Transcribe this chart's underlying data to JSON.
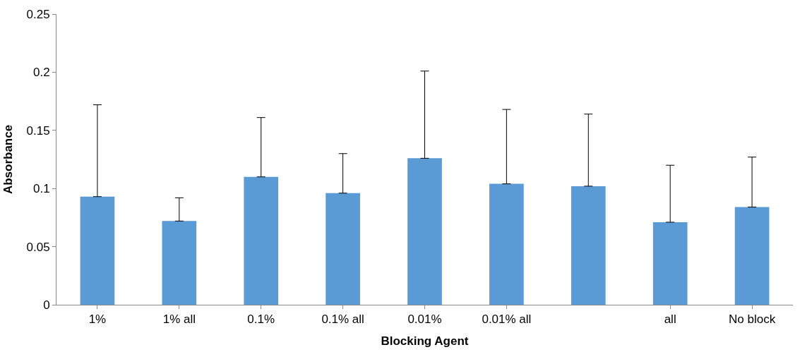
{
  "chart_data": {
    "type": "bar",
    "xlabel": "Blocking Agent",
    "ylabel": "Absorbance",
    "categories": [
      "1%",
      "1% all",
      "0.1%",
      "0.1% all",
      "0.01%",
      "0.01% all",
      null,
      "all",
      "No block"
    ],
    "values": [
      0.093,
      0.072,
      0.11,
      0.096,
      0.126,
      0.104,
      0.102,
      0.071,
      0.084
    ],
    "errors": [
      [
        0.093,
        0.172
      ],
      [
        0.072,
        0.092
      ],
      [
        0.11,
        0.161
      ],
      [
        0.096,
        0.13
      ],
      [
        0.126,
        0.201
      ],
      [
        0.104,
        0.168
      ],
      [
        0.102,
        0.164
      ],
      [
        0.071,
        0.12
      ],
      [
        0.084,
        0.127
      ]
    ],
    "color": "#5b9bd5",
    "ylim": [
      0,
      0.25
    ],
    "yticks": [
      0,
      0.05,
      0.1,
      0.15,
      0.2,
      0.25
    ]
  }
}
